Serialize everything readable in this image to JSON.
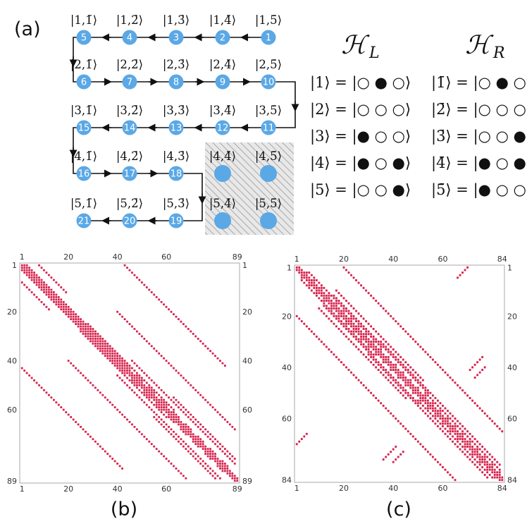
{
  "panel_labels": {
    "a": "(a)",
    "b": "(b)",
    "c": "(c)"
  },
  "grid": {
    "rows": [
      {
        "kets": [
          "|1,1̄⟩",
          "|1,2̄⟩",
          "|1,3̄⟩",
          "|1,4̄⟩",
          "|1,5̄⟩"
        ],
        "nodes": [
          "5",
          "4",
          "3",
          "2",
          "1"
        ]
      },
      {
        "kets": [
          "|2,1̄⟩",
          "|2,2̄⟩",
          "|2,3̄⟩",
          "|2,4̄⟩",
          "|2,5̄⟩"
        ],
        "nodes": [
          "6",
          "7",
          "8",
          "9",
          "10"
        ]
      },
      {
        "kets": [
          "|3,1̄⟩",
          "|3,2̄⟩",
          "|3,3̄⟩",
          "|3,4̄⟩",
          "|3,5̄⟩"
        ],
        "nodes": [
          "15",
          "14",
          "13",
          "12",
          "11"
        ]
      },
      {
        "kets": [
          "|4,1̄⟩",
          "|4,2̄⟩",
          "|4,3̄⟩",
          "|4,4̄⟩",
          "|4,5̄⟩"
        ],
        "nodes": [
          "16",
          "17",
          "18",
          "",
          ""
        ]
      },
      {
        "kets": [
          "|5,1̄⟩",
          "|5,2̄⟩",
          "|5,3̄⟩",
          "|5,4̄⟩",
          "|5,5̄⟩"
        ],
        "nodes": [
          "21",
          "20",
          "19",
          "",
          ""
        ]
      }
    ],
    "colors": {
      "node": "#5aa8e6",
      "excluded_fill": "#e6e6e6",
      "hatch": "#a8a8a8"
    }
  },
  "hamiltonians": {
    "left": {
      "title": "ℋ",
      "subscript": "L",
      "states": [
        "|1⟩ = |○ ● ○⟩",
        "|2⟩ = |○ ○ ○⟩",
        "|3⟩ = |● ○ ○⟩",
        "|4⟩ = |● ○ ●⟩",
        "|5⟩ = |○ ○ ●⟩"
      ]
    },
    "right": {
      "title": "ℋ",
      "subscript": "R",
      "states": [
        "|1̄⟩ = |○ ● ○⟩",
        "|2̄⟩ = |○ ○ ○⟩",
        "|3̄⟩ = |○ ○ ●⟩",
        "|4̄⟩ = |● ○ ●⟩",
        "|5̄⟩ = |● ○ ○⟩"
      ]
    }
  },
  "chart_data": [
    {
      "type": "heatmap",
      "panel": "(b)",
      "size": 89,
      "x_ticks": [
        "1",
        "20",
        "40",
        "60",
        "89"
      ],
      "y_ticks": [
        "1",
        "20",
        "40",
        "60",
        "89"
      ],
      "color": "#d6204a",
      "structure": "sparse symmetric matrix: tridiagonal band with 5x5 blocks plus long off-diagonal bands"
    },
    {
      "type": "heatmap",
      "panel": "(c)",
      "size": 84,
      "x_ticks": [
        "1",
        "20",
        "40",
        "60",
        "84"
      ],
      "y_ticks": [
        "1",
        "20",
        "40",
        "60",
        "84"
      ],
      "color": "#d6204a",
      "structure": "sparse symmetric matrix: banded diagonal with off-diagonal bands and short corner segments"
    }
  ]
}
